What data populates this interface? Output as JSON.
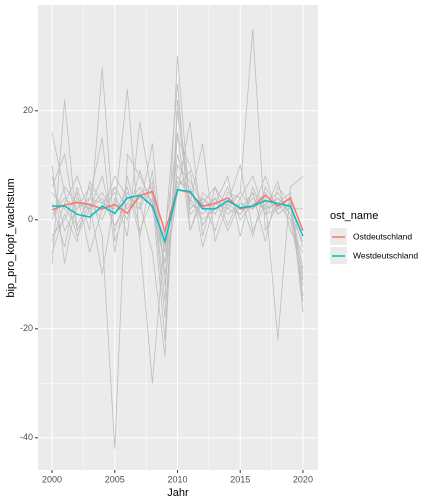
{
  "chart_data": {
    "type": "line",
    "x_label": "Jahr",
    "y_label": "bip_pro_kopf_wachstum",
    "legend_title": "ost_name",
    "x": [
      2000,
      2001,
      2002,
      2003,
      2004,
      2005,
      2006,
      2007,
      2008,
      2009,
      2010,
      2011,
      2012,
      2013,
      2014,
      2015,
      2016,
      2017,
      2018,
      2019,
      2020
    ],
    "xlim": [
      1998.88,
      2021.2
    ],
    "xticks": [
      2000,
      2005,
      2010,
      2015,
      2020
    ],
    "ylim": [
      -45.9,
      39.4
    ],
    "yticks": [
      -40,
      -20,
      0,
      20
    ],
    "grid": true,
    "background_color": "#bebebe",
    "background_series": [
      [
        16,
        5,
        -3,
        2,
        4,
        -1,
        3,
        6,
        2,
        -8,
        12,
        3,
        1,
        4,
        -2,
        3,
        2,
        5,
        1,
        3,
        -5
      ],
      [
        -8,
        22,
        -2,
        3,
        0,
        6,
        2,
        4,
        5,
        -6,
        8,
        4,
        0,
        2,
        3,
        1,
        5,
        2,
        4,
        1,
        -10
      ],
      [
        3,
        -5,
        6,
        -2,
        28,
        -4,
        3,
        2,
        7,
        -15,
        30,
        2,
        4,
        1,
        6,
        0,
        3,
        2,
        3,
        5,
        -17
      ],
      [
        1,
        4,
        2,
        6,
        -3,
        -42,
        12,
        8,
        3,
        -5,
        7,
        6,
        -1,
        3,
        2,
        5,
        35,
        -2,
        3,
        0,
        -12
      ],
      [
        5,
        2,
        -1,
        4,
        3,
        2,
        24,
        -4,
        -30,
        -2,
        15,
        10,
        2,
        4,
        1,
        3,
        2,
        4,
        -22,
        6,
        8
      ],
      [
        -4,
        3,
        8,
        1,
        2,
        5,
        -3,
        18,
        4,
        -22,
        20,
        1,
        3,
        -2,
        5,
        4,
        -3,
        6,
        2,
        4,
        -14
      ],
      [
        10,
        -8,
        4,
        2,
        5,
        1,
        6,
        -3,
        9,
        -10,
        5,
        18,
        -3,
        6,
        2,
        1,
        4,
        2,
        7,
        -2,
        -6
      ],
      [
        -3,
        0,
        5,
        -6,
        2,
        8,
        4,
        3,
        -6,
        -25,
        22,
        3,
        14,
        -4,
        3,
        5,
        2,
        8,
        1,
        3,
        -11
      ],
      [
        6,
        12,
        -2,
        3,
        -10,
        4,
        0,
        9,
        2,
        -3,
        25,
        -2,
        5,
        3,
        8,
        -3,
        6,
        1,
        4,
        2,
        2
      ],
      [
        0,
        6,
        3,
        2,
        8,
        -2,
        5,
        2,
        14,
        -12,
        10,
        7,
        3,
        6,
        -1,
        4,
        8,
        1,
        2,
        3,
        -9
      ],
      [
        -6,
        1,
        -4,
        7,
        3,
        6,
        2,
        5,
        6,
        -18,
        16,
        -2,
        4,
        2,
        3,
        10,
        -2,
        3,
        5,
        1,
        -4
      ],
      [
        8,
        -2,
        2,
        4,
        15,
        -6,
        8,
        -2,
        4,
        -8,
        6,
        9,
        -5,
        3,
        4,
        2,
        5,
        -4,
        6,
        3,
        -15
      ]
    ],
    "series": [
      {
        "name": "Ostdeutschland",
        "color": "#F8766D",
        "values": [
          1.8,
          2.7,
          3.2,
          2.8,
          2,
          2.8,
          1.2,
          4.5,
          5.2,
          -2.2,
          5.5,
          5,
          2.5,
          3,
          4,
          2,
          2.5,
          4.5,
          2.5,
          4,
          -2
        ]
      },
      {
        "name": "Westdeutschland",
        "color": "#00BFC4",
        "values": [
          2.5,
          2.5,
          1,
          0.5,
          2.5,
          1.2,
          4,
          4.5,
          2.5,
          -4,
          5.5,
          5.2,
          2,
          2,
          3.5,
          2.2,
          2.5,
          3.5,
          3,
          2.5,
          -3
        ]
      }
    ]
  }
}
